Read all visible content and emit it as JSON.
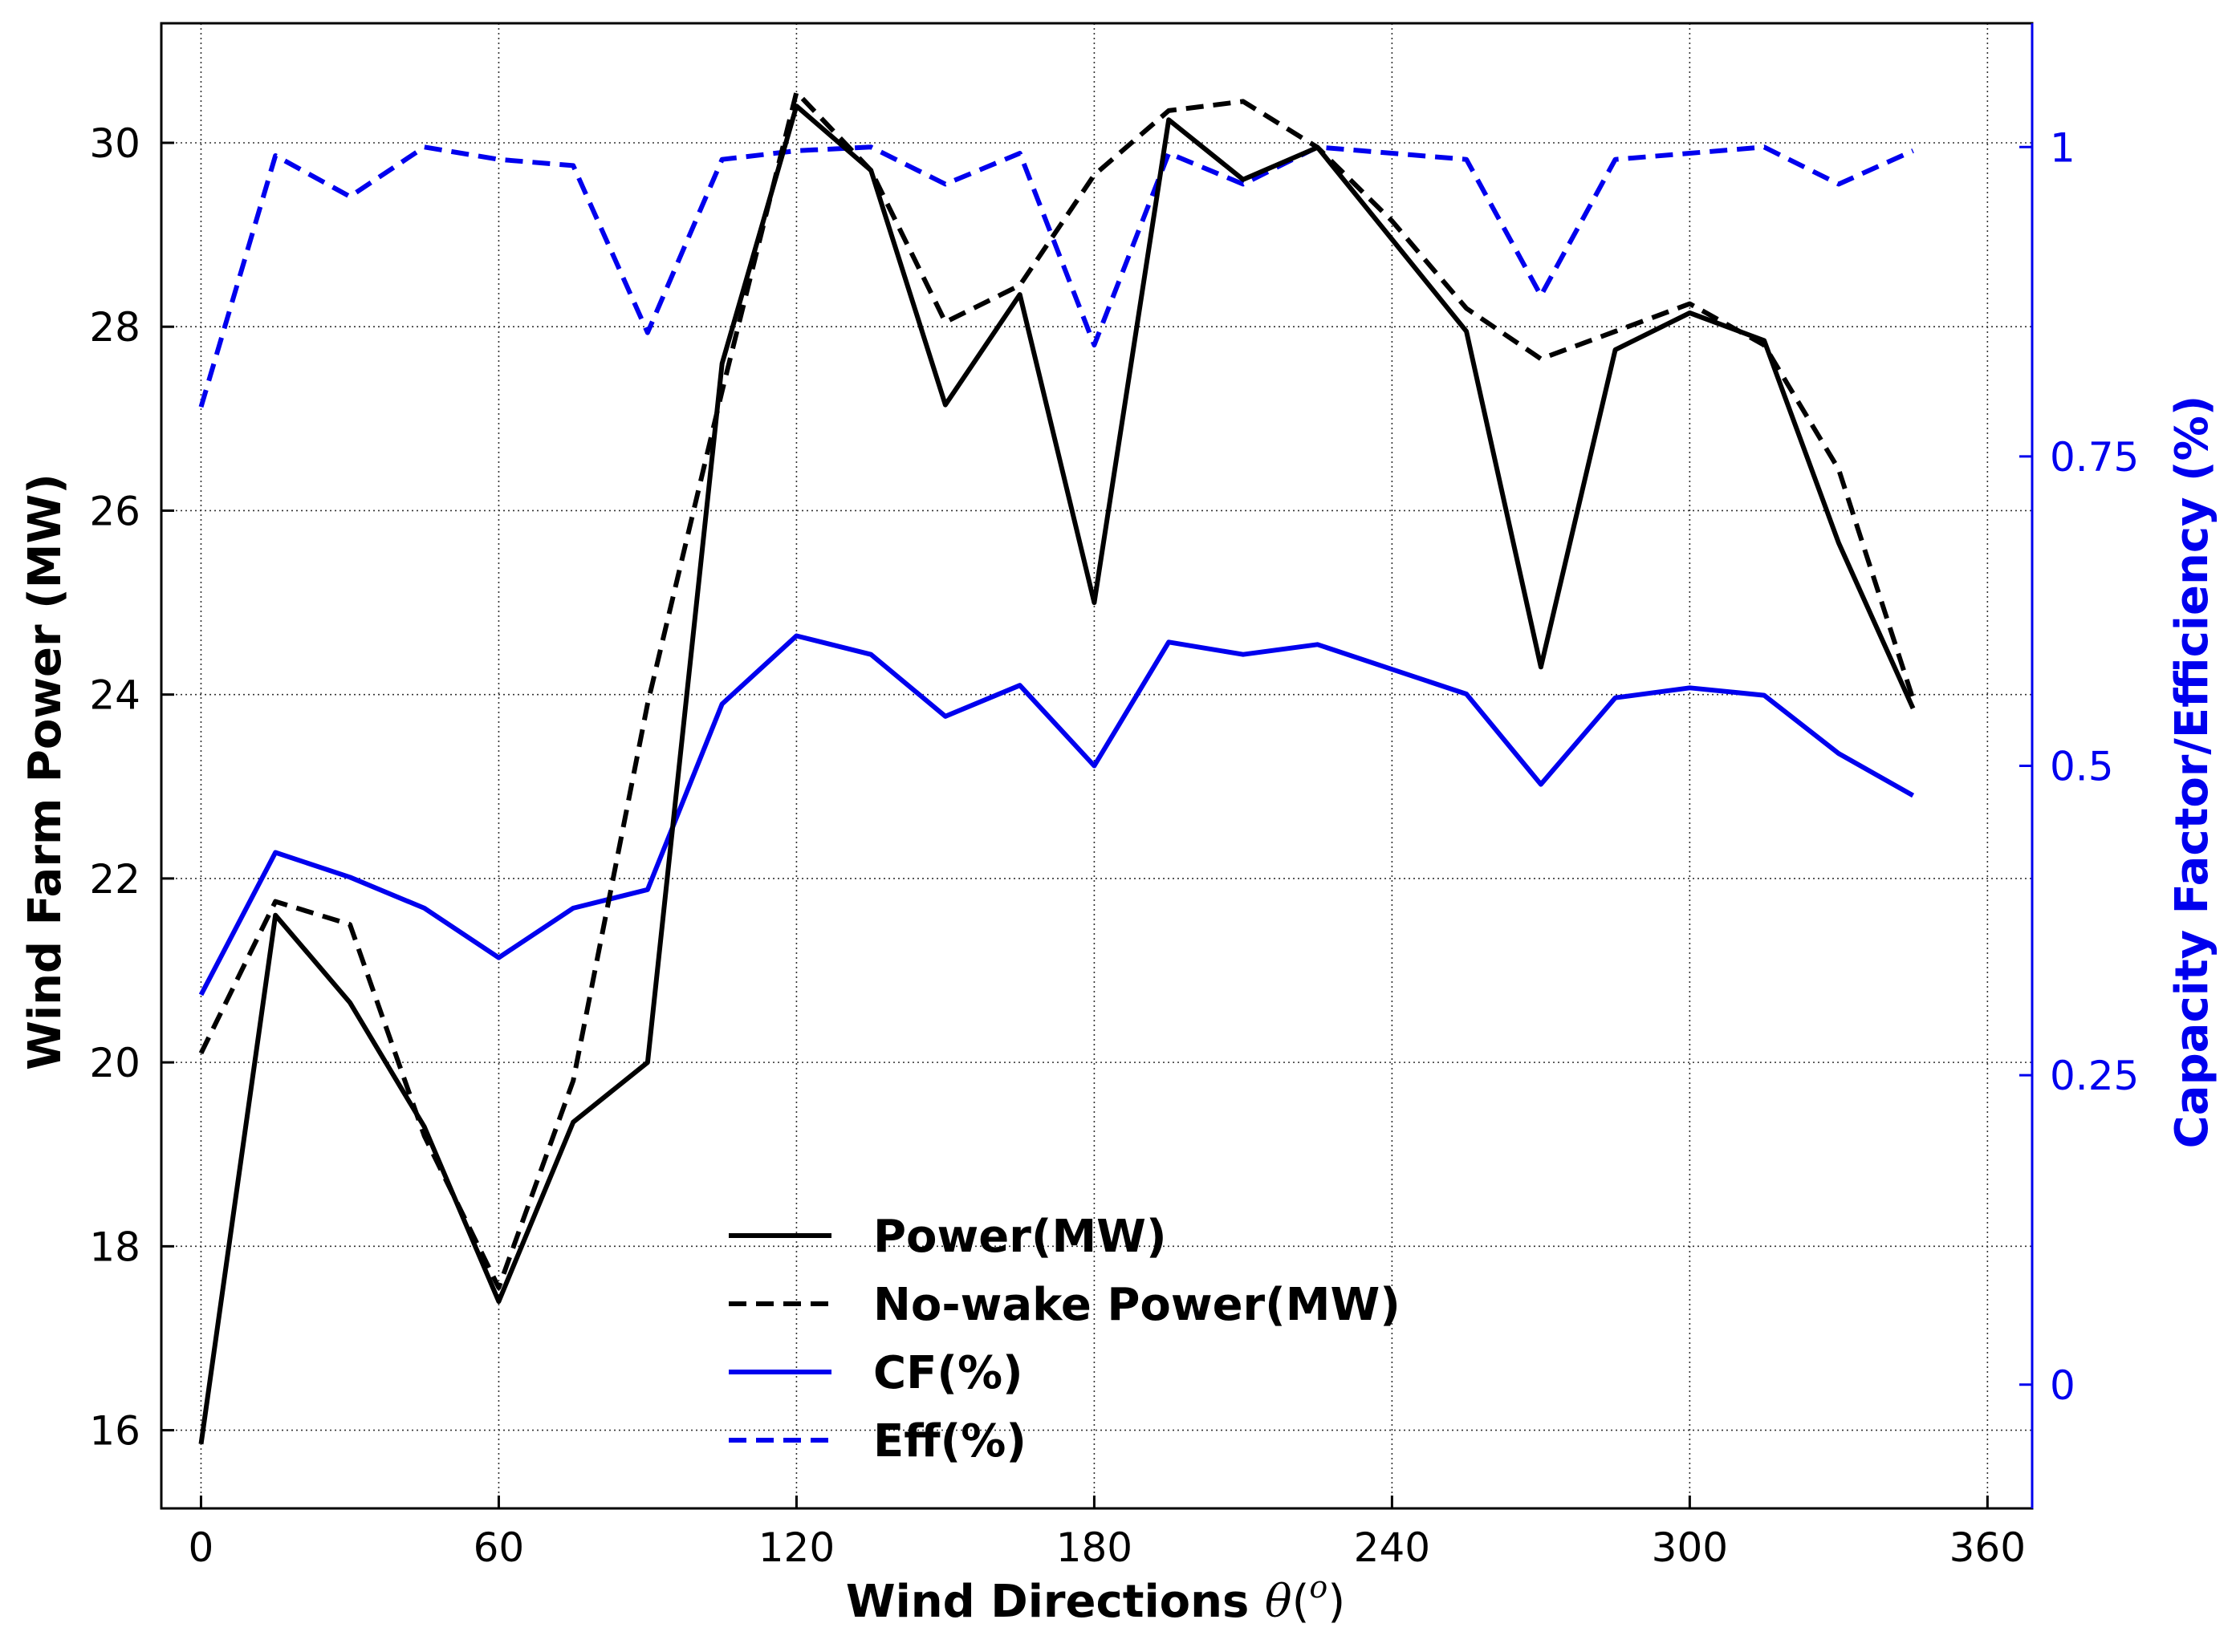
{
  "chart_data": {
    "type": "line",
    "xlabel": "Wind Directions",
    "xlabel_symbol": "θ",
    "xlabel_sup": "o",
    "ylabel": "Wind Farm Power (MW)",
    "y2label": "Capacity Factor/Efficiency (%)",
    "xlim": [
      -8,
      369
    ],
    "ylim": [
      15.15,
      31.3
    ],
    "y2lim": [
      -0.1,
      1.1
    ],
    "xticks": [
      0,
      60,
      120,
      180,
      240,
      300,
      360
    ],
    "yticks": [
      16,
      18,
      20,
      22,
      24,
      26,
      28,
      30
    ],
    "y2ticks": [
      0,
      0.25,
      0.5,
      0.75,
      1
    ],
    "y2tick_labels": [
      "0",
      "0.25",
      "0.5",
      "0.75",
      "1"
    ],
    "grid": true,
    "legend_position": "lower-center",
    "colors": {
      "power": "#000000",
      "cf_eff": "#0000ee"
    },
    "x": [
      0,
      15,
      30,
      45,
      60,
      75,
      90,
      105,
      120,
      135,
      150,
      165,
      180,
      195,
      210,
      225,
      240,
      255,
      270,
      285,
      300,
      315,
      330,
      345
    ],
    "series": [
      {
        "name": "Power(MW)",
        "axis": "left",
        "color": "#000000",
        "dash": "solid",
        "values": [
          15.85,
          21.6,
          20.65,
          19.3,
          17.4,
          19.35,
          20.0,
          27.6,
          30.4,
          29.7,
          27.15,
          28.35,
          25.0,
          30.25,
          29.6,
          29.95,
          28.95,
          27.95,
          24.3,
          27.75,
          28.15,
          27.85,
          25.65,
          23.85
        ]
      },
      {
        "name": "No-wake Power(MW)",
        "axis": "left",
        "color": "#000000",
        "dash": "dashed",
        "values": [
          20.1,
          21.75,
          21.5,
          19.2,
          17.55,
          19.8,
          23.9,
          27.3,
          30.55,
          29.7,
          28.05,
          28.45,
          29.65,
          30.35,
          30.45,
          29.95,
          29.15,
          28.2,
          27.65,
          27.95,
          28.25,
          27.8,
          26.45,
          23.95
        ]
      },
      {
        "name": "CF(%)",
        "axis": "right",
        "color": "#0000ee",
        "dash": "solid",
        "values": [
          0.315,
          0.43,
          0.41,
          0.385,
          0.345,
          0.385,
          0.4,
          0.55,
          0.605,
          0.59,
          0.54,
          0.565,
          0.5,
          0.6,
          0.59,
          0.598,
          0.578,
          0.558,
          0.485,
          0.555,
          0.563,
          0.557,
          0.51,
          0.476
        ]
      },
      {
        "name": "Eff(%)",
        "axis": "right",
        "color": "#0000ee",
        "dash": "dashed",
        "values": [
          0.79,
          0.993,
          0.96,
          1.0,
          0.99,
          0.985,
          0.85,
          0.99,
          0.997,
          1.0,
          0.97,
          0.995,
          0.84,
          0.995,
          0.97,
          1.0,
          0.995,
          0.99,
          0.88,
          0.99,
          0.995,
          1.0,
          0.97,
          0.997
        ]
      }
    ]
  }
}
